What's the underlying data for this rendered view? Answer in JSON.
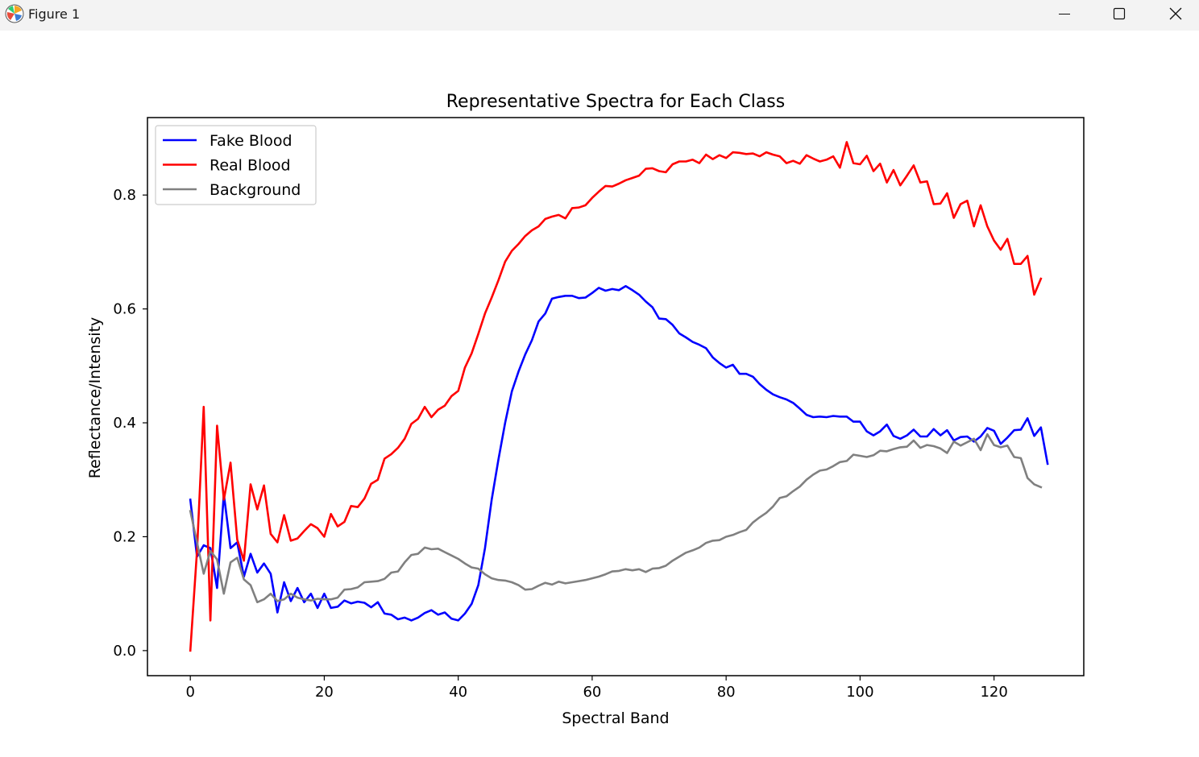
{
  "window": {
    "title": "Figure 1",
    "icons": [
      "matplotlib-icon",
      "minimize-icon",
      "maximize-icon",
      "close-icon"
    ]
  },
  "chart_data": {
    "type": "line",
    "title": "Representative Spectra for Each Class",
    "xlabel": "Spectral Band",
    "ylabel": "Reflectance/Intensity",
    "xlim": [
      -6.4,
      133.4
    ],
    "ylim": [
      -0.044,
      0.936
    ],
    "xticks": [
      0,
      20,
      40,
      60,
      80,
      100,
      120
    ],
    "xtick_labels": [
      "0",
      "20",
      "40",
      "60",
      "80",
      "100",
      "120"
    ],
    "yticks": [
      0.0,
      0.2,
      0.4,
      0.6,
      0.8
    ],
    "ytick_labels": [
      "0.0",
      "0.2",
      "0.4",
      "0.6",
      "0.8"
    ],
    "grid": false,
    "legend_position": "upper left",
    "series": [
      {
        "name": "Fake Blood",
        "color": "#0000ff",
        "values": [
          0.265,
          0.165,
          0.185,
          0.18,
          0.11,
          0.275,
          0.18,
          0.19,
          0.13,
          0.17,
          0.137,
          0.153,
          0.135,
          0.067,
          0.12,
          0.087,
          0.11,
          0.085,
          0.1,
          0.075,
          0.1,
          0.075,
          0.077,
          0.088,
          0.083,
          0.086,
          0.084,
          0.076,
          0.085,
          0.065,
          0.063,
          0.055,
          0.058,
          0.053,
          0.058,
          0.066,
          0.071,
          0.063,
          0.067,
          0.056,
          0.053,
          0.065,
          0.082,
          0.115,
          0.18,
          0.265,
          0.335,
          0.4,
          0.455,
          0.49,
          0.52,
          0.545,
          0.578,
          0.592,
          0.618,
          0.621,
          0.623,
          0.623,
          0.619,
          0.62,
          0.628,
          0.637,
          0.632,
          0.635,
          0.633,
          0.64,
          0.633,
          0.625,
          0.613,
          0.603,
          0.583,
          0.582,
          0.572,
          0.557,
          0.55,
          0.542,
          0.537,
          0.531,
          0.515,
          0.505,
          0.497,
          0.502,
          0.486,
          0.486,
          0.481,
          0.468,
          0.458,
          0.45,
          0.445,
          0.441,
          0.435,
          0.425,
          0.414,
          0.41,
          0.411,
          0.41,
          0.412,
          0.411,
          0.411,
          0.402,
          0.402,
          0.385,
          0.378,
          0.385,
          0.397,
          0.377,
          0.372,
          0.378,
          0.388,
          0.376,
          0.376,
          0.389,
          0.378,
          0.387,
          0.369,
          0.375,
          0.376,
          0.367,
          0.376,
          0.391,
          0.386,
          0.363,
          0.374,
          0.387,
          0.388,
          0.408,
          0.377,
          0.392,
          0.328
        ]
      },
      {
        "name": "Real Blood",
        "color": "#ff0000",
        "values": [
          0.0,
          0.175,
          0.428,
          0.053,
          0.395,
          0.265,
          0.33,
          0.195,
          0.158,
          0.292,
          0.248,
          0.29,
          0.205,
          0.19,
          0.238,
          0.193,
          0.197,
          0.21,
          0.222,
          0.215,
          0.2,
          0.24,
          0.218,
          0.226,
          0.254,
          0.252,
          0.267,
          0.293,
          0.3,
          0.337,
          0.345,
          0.356,
          0.372,
          0.398,
          0.407,
          0.428,
          0.41,
          0.423,
          0.43,
          0.447,
          0.456,
          0.497,
          0.522,
          0.556,
          0.592,
          0.62,
          0.65,
          0.683,
          0.702,
          0.714,
          0.728,
          0.738,
          0.745,
          0.758,
          0.762,
          0.765,
          0.759,
          0.777,
          0.778,
          0.782,
          0.795,
          0.806,
          0.816,
          0.815,
          0.82,
          0.826,
          0.83,
          0.834,
          0.846,
          0.847,
          0.842,
          0.84,
          0.854,
          0.859,
          0.859,
          0.862,
          0.856,
          0.871,
          0.863,
          0.87,
          0.865,
          0.875,
          0.874,
          0.872,
          0.873,
          0.868,
          0.875,
          0.871,
          0.868,
          0.856,
          0.86,
          0.855,
          0.87,
          0.864,
          0.859,
          0.862,
          0.868,
          0.848,
          0.893,
          0.856,
          0.854,
          0.869,
          0.842,
          0.855,
          0.822,
          0.844,
          0.817,
          0.834,
          0.852,
          0.822,
          0.824,
          0.784,
          0.785,
          0.803,
          0.76,
          0.784,
          0.79,
          0.745,
          0.782,
          0.745,
          0.72,
          0.704,
          0.723,
          0.679,
          0.679,
          0.693,
          0.625,
          0.653
        ]
      },
      {
        "name": "Background",
        "color": "#808080",
        "values": [
          0.245,
          0.19,
          0.135,
          0.175,
          0.16,
          0.1,
          0.155,
          0.163,
          0.125,
          0.115,
          0.085,
          0.09,
          0.1,
          0.087,
          0.09,
          0.1,
          0.093,
          0.09,
          0.088,
          0.091,
          0.09,
          0.09,
          0.093,
          0.107,
          0.108,
          0.111,
          0.12,
          0.121,
          0.122,
          0.126,
          0.137,
          0.139,
          0.155,
          0.168,
          0.17,
          0.181,
          0.178,
          0.179,
          0.173,
          0.167,
          0.161,
          0.153,
          0.146,
          0.144,
          0.134,
          0.127,
          0.124,
          0.123,
          0.12,
          0.115,
          0.107,
          0.108,
          0.114,
          0.119,
          0.116,
          0.121,
          0.118,
          0.12,
          0.122,
          0.124,
          0.127,
          0.13,
          0.134,
          0.139,
          0.14,
          0.143,
          0.141,
          0.143,
          0.138,
          0.144,
          0.145,
          0.149,
          0.158,
          0.165,
          0.172,
          0.176,
          0.181,
          0.189,
          0.193,
          0.194,
          0.2,
          0.203,
          0.208,
          0.212,
          0.225,
          0.234,
          0.242,
          0.253,
          0.268,
          0.271,
          0.28,
          0.288,
          0.3,
          0.309,
          0.316,
          0.318,
          0.324,
          0.331,
          0.333,
          0.344,
          0.342,
          0.34,
          0.343,
          0.351,
          0.35,
          0.354,
          0.357,
          0.358,
          0.369,
          0.356,
          0.361,
          0.359,
          0.355,
          0.347,
          0.367,
          0.36,
          0.366,
          0.372,
          0.352,
          0.38,
          0.361,
          0.357,
          0.36,
          0.34,
          0.338,
          0.303,
          0.292,
          0.287
        ]
      }
    ]
  }
}
